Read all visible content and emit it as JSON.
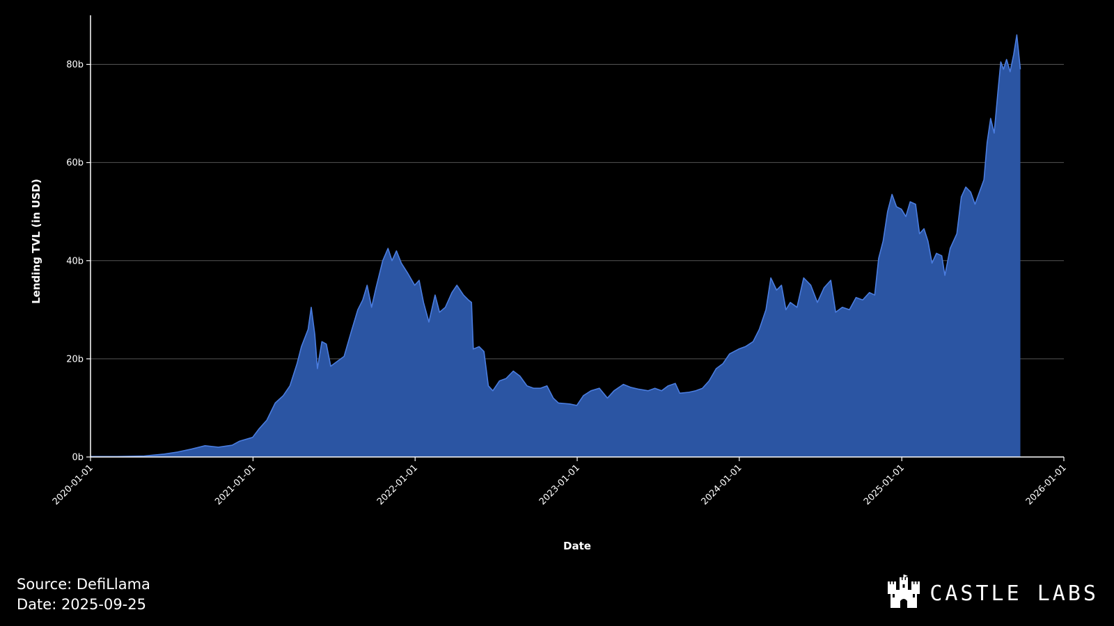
{
  "footer": {
    "source": "Source: DefiLlama",
    "date": "Date: 2025-09-25"
  },
  "brand": {
    "name": "CASTLE LABS",
    "logo_icon": "castle-icon"
  },
  "colors": {
    "background": "#000000",
    "area_fill": "#2b55a3",
    "area_line": "#4a7de0",
    "grid": "#555555",
    "axis": "#ffffff"
  },
  "chart_data": {
    "type": "area",
    "title": "",
    "xlabel": "Date",
    "ylabel": "Lending TVL (in USD)",
    "grid": true,
    "legend": "none",
    "xlim": [
      "2020-01-01",
      "2026-01-01"
    ],
    "ylim": [
      0,
      90
    ],
    "x_ticks": [
      "2020-01-01",
      "2021-01-01",
      "2022-01-01",
      "2023-01-01",
      "2024-01-01",
      "2025-01-01",
      "2026-01-01"
    ],
    "y_ticks": [
      {
        "value": 0,
        "label": "0b"
      },
      {
        "value": 20,
        "label": "20b"
      },
      {
        "value": 40,
        "label": "40b"
      },
      {
        "value": 60,
        "label": "60b"
      },
      {
        "value": 80,
        "label": "80b"
      }
    ],
    "series": [
      {
        "unit": "billion USD",
        "points": [
          [
            "2020-01-01",
            0.1
          ],
          [
            "2020-03-01",
            0.1
          ],
          [
            "2020-05-01",
            0.2
          ],
          [
            "2020-06-15",
            0.6
          ],
          [
            "2020-07-15",
            1.0
          ],
          [
            "2020-08-15",
            1.6
          ],
          [
            "2020-09-15",
            2.3
          ],
          [
            "2020-10-15",
            2.0
          ],
          [
            "2020-11-15",
            2.4
          ],
          [
            "2020-12-01",
            3.2
          ],
          [
            "2020-12-31",
            4.0
          ],
          [
            "2021-01-15",
            5.8
          ],
          [
            "2021-02-01",
            7.5
          ],
          [
            "2021-02-20",
            11.0
          ],
          [
            "2021-03-10",
            12.5
          ],
          [
            "2021-03-25",
            14.5
          ],
          [
            "2021-04-10",
            19.0
          ],
          [
            "2021-04-20",
            22.5
          ],
          [
            "2021-05-05",
            26.0
          ],
          [
            "2021-05-12",
            30.5
          ],
          [
            "2021-05-20",
            25.0
          ],
          [
            "2021-05-26",
            18.0
          ],
          [
            "2021-06-05",
            23.5
          ],
          [
            "2021-06-15",
            23.0
          ],
          [
            "2021-06-25",
            18.5
          ],
          [
            "2021-07-10",
            19.5
          ],
          [
            "2021-07-25",
            20.5
          ],
          [
            "2021-08-10",
            25.5
          ],
          [
            "2021-08-25",
            30.0
          ],
          [
            "2021-09-05",
            32.0
          ],
          [
            "2021-09-15",
            35.0
          ],
          [
            "2021-09-25",
            30.5
          ],
          [
            "2021-10-05",
            34.5
          ],
          [
            "2021-10-20",
            40.0
          ],
          [
            "2021-11-01",
            42.5
          ],
          [
            "2021-11-10",
            40.0
          ],
          [
            "2021-11-20",
            42.0
          ],
          [
            "2021-12-01",
            39.5
          ],
          [
            "2021-12-15",
            37.5
          ],
          [
            "2021-12-31",
            35.0
          ],
          [
            "2022-01-10",
            36.0
          ],
          [
            "2022-01-20",
            31.5
          ],
          [
            "2022-02-01",
            27.5
          ],
          [
            "2022-02-15",
            33.0
          ],
          [
            "2022-02-25",
            29.5
          ],
          [
            "2022-03-10",
            30.5
          ],
          [
            "2022-03-25",
            33.5
          ],
          [
            "2022-04-05",
            35.0
          ],
          [
            "2022-04-20",
            33.0
          ],
          [
            "2022-05-01",
            32.0
          ],
          [
            "2022-05-08",
            31.5
          ],
          [
            "2022-05-12",
            22.0
          ],
          [
            "2022-05-25",
            22.5
          ],
          [
            "2022-06-05",
            21.5
          ],
          [
            "2022-06-15",
            14.5
          ],
          [
            "2022-06-25",
            13.5
          ],
          [
            "2022-07-10",
            15.5
          ],
          [
            "2022-07-25",
            16.0
          ],
          [
            "2022-08-10",
            17.5
          ],
          [
            "2022-08-25",
            16.5
          ],
          [
            "2022-09-10",
            14.5
          ],
          [
            "2022-09-25",
            14.0
          ],
          [
            "2022-10-10",
            14.0
          ],
          [
            "2022-10-25",
            14.5
          ],
          [
            "2022-11-08",
            12.0
          ],
          [
            "2022-11-20",
            11.0
          ],
          [
            "2022-12-15",
            10.8
          ],
          [
            "2022-12-31",
            10.5
          ],
          [
            "2023-01-15",
            12.5
          ],
          [
            "2023-02-01",
            13.5
          ],
          [
            "2023-02-20",
            14.0
          ],
          [
            "2023-03-10",
            12.0
          ],
          [
            "2023-03-25",
            13.5
          ],
          [
            "2023-04-15",
            14.8
          ],
          [
            "2023-05-01",
            14.2
          ],
          [
            "2023-05-20",
            13.8
          ],
          [
            "2023-06-10",
            13.5
          ],
          [
            "2023-06-25",
            14.0
          ],
          [
            "2023-07-10",
            13.5
          ],
          [
            "2023-07-25",
            14.5
          ],
          [
            "2023-08-10",
            15.0
          ],
          [
            "2023-08-20",
            13.0
          ],
          [
            "2023-09-10",
            13.2
          ],
          [
            "2023-09-25",
            13.5
          ],
          [
            "2023-10-10",
            14.0
          ],
          [
            "2023-10-25",
            15.5
          ],
          [
            "2023-11-10",
            18.0
          ],
          [
            "2023-11-25",
            19.0
          ],
          [
            "2023-12-10",
            21.0
          ],
          [
            "2023-12-31",
            22.0
          ],
          [
            "2024-01-15",
            22.5
          ],
          [
            "2024-02-01",
            23.5
          ],
          [
            "2024-02-15",
            26.0
          ],
          [
            "2024-03-01",
            30.0
          ],
          [
            "2024-03-12",
            36.5
          ],
          [
            "2024-03-25",
            34.0
          ],
          [
            "2024-04-05",
            35.0
          ],
          [
            "2024-04-15",
            30.0
          ],
          [
            "2024-04-25",
            31.5
          ],
          [
            "2024-05-10",
            30.5
          ],
          [
            "2024-05-25",
            36.5
          ],
          [
            "2024-06-10",
            35.0
          ],
          [
            "2024-06-25",
            31.5
          ],
          [
            "2024-07-10",
            34.5
          ],
          [
            "2024-07-25",
            36.0
          ],
          [
            "2024-08-05",
            29.5
          ],
          [
            "2024-08-20",
            30.5
          ],
          [
            "2024-09-05",
            30.0
          ],
          [
            "2024-09-20",
            32.5
          ],
          [
            "2024-10-05",
            32.0
          ],
          [
            "2024-10-20",
            33.5
          ],
          [
            "2024-11-01",
            33.0
          ],
          [
            "2024-11-10",
            40.5
          ],
          [
            "2024-11-20",
            44.0
          ],
          [
            "2024-11-30",
            50.0
          ],
          [
            "2024-12-10",
            53.5
          ],
          [
            "2024-12-20",
            51.0
          ],
          [
            "2024-12-31",
            50.5
          ],
          [
            "2025-01-10",
            49.0
          ],
          [
            "2025-01-20",
            52.0
          ],
          [
            "2025-02-01",
            51.5
          ],
          [
            "2025-02-10",
            45.5
          ],
          [
            "2025-02-20",
            46.5
          ],
          [
            "2025-03-01",
            44.0
          ],
          [
            "2025-03-10",
            39.5
          ],
          [
            "2025-03-20",
            41.5
          ],
          [
            "2025-04-01",
            41.0
          ],
          [
            "2025-04-08",
            37.0
          ],
          [
            "2025-04-20",
            42.5
          ],
          [
            "2025-05-05",
            45.5
          ],
          [
            "2025-05-15",
            53.0
          ],
          [
            "2025-05-25",
            55.0
          ],
          [
            "2025-06-05",
            54.0
          ],
          [
            "2025-06-15",
            51.5
          ],
          [
            "2025-06-25",
            54.0
          ],
          [
            "2025-07-05",
            56.5
          ],
          [
            "2025-07-12",
            64.0
          ],
          [
            "2025-07-20",
            69.0
          ],
          [
            "2025-07-28",
            66.0
          ],
          [
            "2025-08-05",
            74.0
          ],
          [
            "2025-08-12",
            80.5
          ],
          [
            "2025-08-18",
            79.0
          ],
          [
            "2025-08-25",
            81.0
          ],
          [
            "2025-09-02",
            78.5
          ],
          [
            "2025-09-10",
            82.0
          ],
          [
            "2025-09-17",
            86.0
          ],
          [
            "2025-09-25",
            79.0
          ]
        ]
      }
    ]
  }
}
